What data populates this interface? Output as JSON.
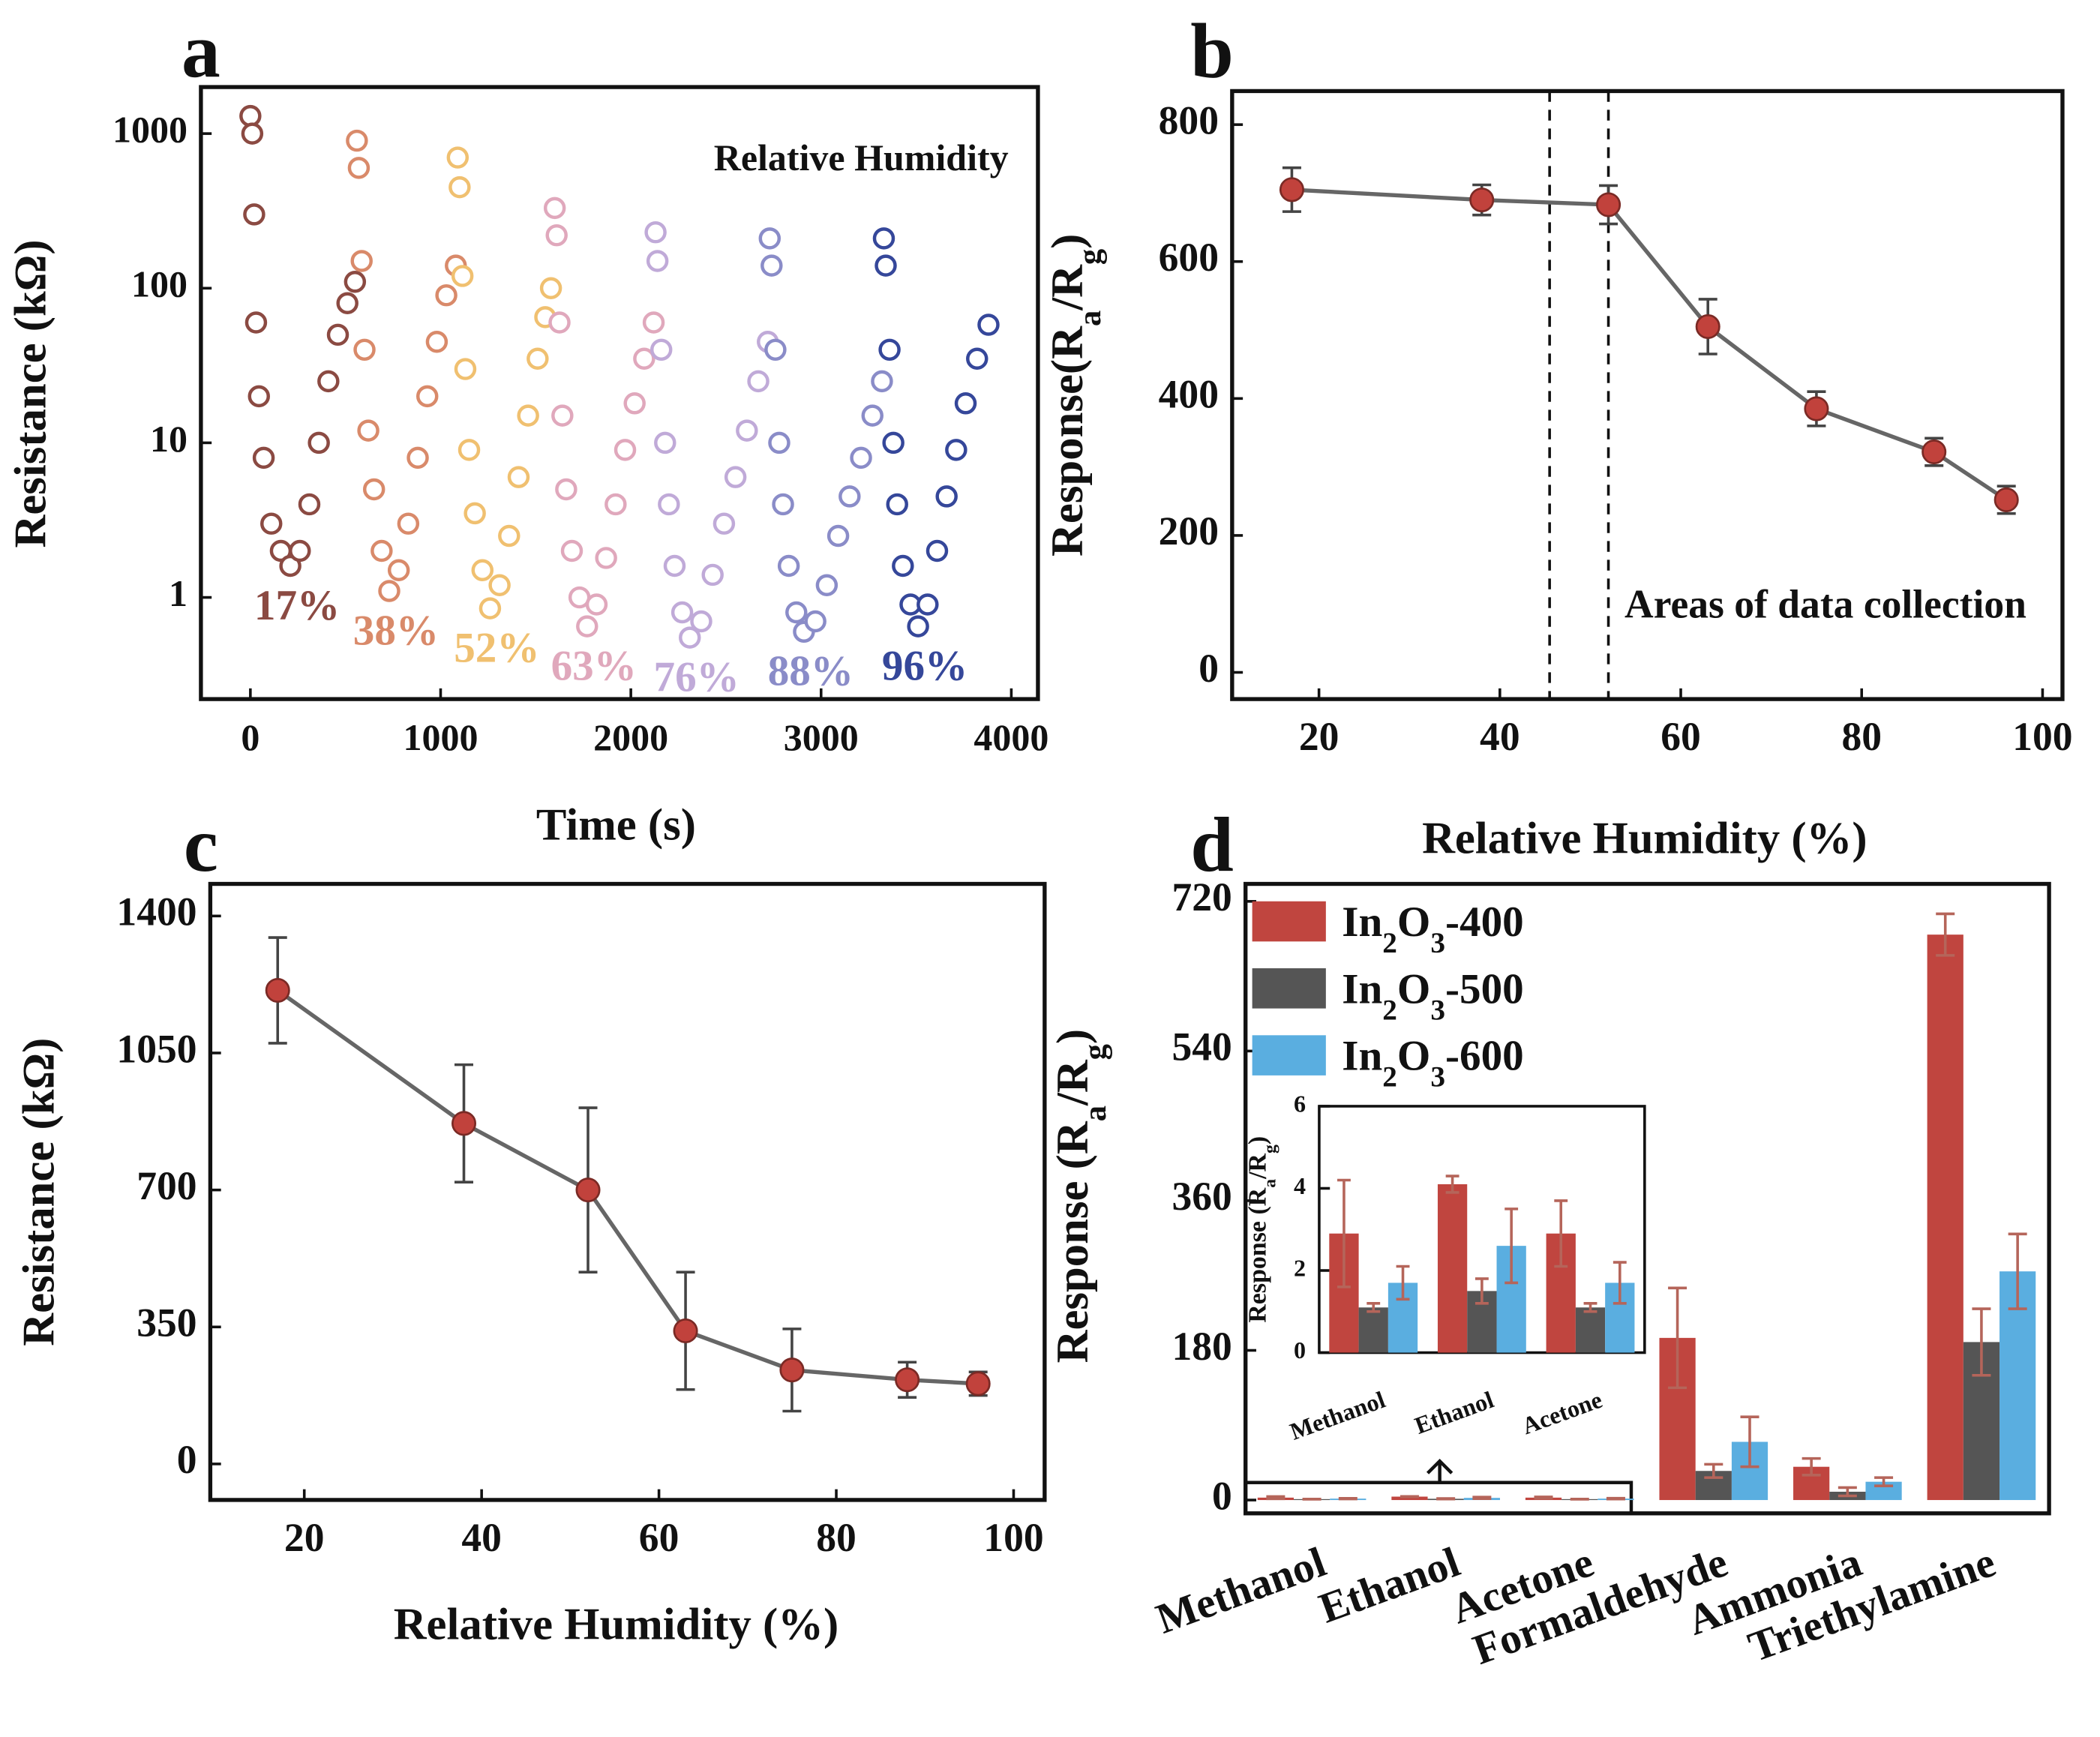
{
  "chart_data": [
    {
      "type": "scatter",
      "panel": "a",
      "xlabel": "Time (s)",
      "ylabel": "Resistance (kΩ)",
      "legend_title": "Relative Humidity",
      "log_scale": true,
      "xlim": [
        -260,
        4140
      ],
      "ylim": [
        0.22,
        2000
      ],
      "xticks": [
        0,
        1000,
        2000,
        3000,
        4000
      ],
      "yticks": [
        1,
        10,
        100,
        1000
      ],
      "series": [
        {
          "name": "17%",
          "color": "#8b4a42",
          "x": [
            0,
            10,
            20,
            30,
            45,
            70,
            110,
            160,
            210,
            260,
            310,
            360,
            410,
            460,
            510,
            550
          ],
          "values": [
            1300,
            1000,
            300,
            60,
            20,
            8,
            3,
            2,
            1.6,
            2,
            4,
            10,
            25,
            50,
            80,
            110
          ]
        },
        {
          "name": "38%",
          "color": "#d98a6a",
          "x": [
            560,
            570,
            585,
            600,
            620,
            650,
            690,
            730,
            780,
            830,
            880,
            930,
            980,
            1030,
            1080
          ],
          "values": [
            900,
            600,
            150,
            40,
            12,
            5,
            2,
            1.1,
            1.5,
            3,
            8,
            20,
            45,
            90,
            140
          ]
        },
        {
          "name": "52%",
          "color": "#f0c070",
          "x": [
            1090,
            1100,
            1115,
            1130,
            1150,
            1180,
            1220,
            1260,
            1310,
            1360,
            1410,
            1460,
            1510,
            1550,
            1580
          ],
          "values": [
            700,
            450,
            120,
            30,
            9,
            3.5,
            1.5,
            0.85,
            1.2,
            2.5,
            6,
            15,
            35,
            65,
            100
          ]
        },
        {
          "name": "63%",
          "color": "#e0a8bc",
          "x": [
            1600,
            1610,
            1625,
            1640,
            1660,
            1690,
            1730,
            1770,
            1820,
            1870,
            1920,
            1970,
            2020,
            2070,
            2120
          ],
          "values": [
            330,
            220,
            60,
            15,
            5,
            2,
            1,
            0.65,
            0.9,
            1.8,
            4,
            9,
            18,
            35,
            60
          ]
        },
        {
          "name": "76%",
          "color": "#c0aad8",
          "x": [
            2130,
            2140,
            2160,
            2180,
            2200,
            2230,
            2270,
            2310,
            2370,
            2430,
            2490,
            2550,
            2610,
            2670,
            2720
          ],
          "values": [
            230,
            150,
            40,
            10,
            4,
            1.6,
            0.8,
            0.55,
            0.7,
            1.4,
            3,
            6,
            12,
            25,
            45
          ]
        },
        {
          "name": "88%",
          "color": "#8a8cc8",
          "x": [
            2730,
            2740,
            2760,
            2780,
            2800,
            2830,
            2870,
            2910,
            2970,
            3030,
            3090,
            3150,
            3210,
            3270,
            3320
          ],
          "values": [
            210,
            140,
            40,
            10,
            4,
            1.6,
            0.8,
            0.6,
            0.7,
            1.2,
            2.5,
            4.5,
            8,
            15,
            25
          ]
        },
        {
          "name": "96%",
          "color": "#35479a",
          "x": [
            3330,
            3340,
            3360,
            3380,
            3400,
            3430,
            3470,
            3510,
            3560,
            3610,
            3660,
            3710,
            3760,
            3820,
            3880
          ],
          "values": [
            210,
            140,
            40,
            10,
            4,
            1.6,
            0.9,
            0.65,
            0.9,
            2,
            4.5,
            9,
            18,
            35,
            58
          ]
        }
      ]
    },
    {
      "type": "line",
      "panel": "b",
      "xlabel": "Relative Humidity (%)",
      "ylabel": [
        "Response(R",
        "a",
        "/R",
        "g",
        ")"
      ],
      "annotation": "Areas of data collection",
      "vlines": [
        45.5,
        52
      ],
      "color": "#c1423c",
      "line_color": "#666666",
      "xlim": [
        10.4,
        102.2
      ],
      "ylim": [
        -39,
        849
      ],
      "xticks": [
        20,
        40,
        60,
        80,
        100
      ],
      "yticks": [
        0,
        200,
        400,
        600,
        800
      ],
      "x": [
        17,
        38,
        52,
        63,
        75,
        88,
        96
      ],
      "values": [
        705,
        690,
        683,
        505,
        385,
        322,
        252
      ],
      "errors": [
        32,
        22,
        28,
        40,
        25,
        20,
        20
      ]
    },
    {
      "type": "line",
      "panel": "c",
      "xlabel": "Relative Humidity (%)",
      "ylabel": "Resistance (kΩ)",
      "color": "#c1423c",
      "line_color": "#666666",
      "xlim": [
        9.4,
        103.5
      ],
      "ylim": [
        -92,
        1482
      ],
      "xticks": [
        20,
        40,
        60,
        80,
        100
      ],
      "yticks": [
        0,
        350,
        700,
        1050,
        1400
      ],
      "x": [
        17,
        38,
        52,
        63,
        75,
        88,
        96
      ],
      "values": [
        1210,
        870,
        700,
        340,
        240,
        215,
        205
      ],
      "errors": [
        135,
        150,
        210,
        150,
        105,
        45,
        30
      ]
    },
    {
      "type": "bar",
      "panel": "d",
      "ylabel": [
        "Response (R",
        "a",
        "/R",
        "g",
        ")"
      ],
      "error_color": "#b5655a",
      "ylim": [
        -16,
        741
      ],
      "yticks": [
        0,
        180,
        360,
        540,
        720
      ],
      "categories": [
        "Methanol",
        "Ethanol",
        "Acetone",
        "Formaldehyde",
        "Ammonia",
        "Triethylamine"
      ],
      "series": [
        {
          "name": "In2O3-400",
          "color": "#c0453f",
          "values": [
            2.9,
            4.1,
            2.9,
            195,
            40,
            680
          ],
          "errors": [
            1.3,
            0.2,
            0.8,
            60,
            10,
            25
          ]
        },
        {
          "name": "In2O3-500",
          "color": "#555555",
          "values": [
            1.1,
            1.5,
            1.1,
            35,
            10,
            190
          ],
          "errors": [
            0.1,
            0.3,
            0.1,
            8,
            5,
            40
          ]
        },
        {
          "name": "In2O3-600",
          "color": "#5aaee0",
          "values": [
            1.7,
            2.6,
            1.7,
            70,
            22,
            275
          ],
          "errors": [
            0.4,
            0.9,
            0.5,
            30,
            5,
            45
          ]
        }
      ],
      "inset": {
        "ylabel": [
          "Response (R",
          "a",
          "/R",
          "g",
          ")"
        ],
        "ylim": [
          0,
          6
        ],
        "yticks": [
          0,
          2,
          4,
          6
        ],
        "categories": [
          "Methanol",
          "Ethanol",
          "Acetone"
        ]
      }
    }
  ]
}
